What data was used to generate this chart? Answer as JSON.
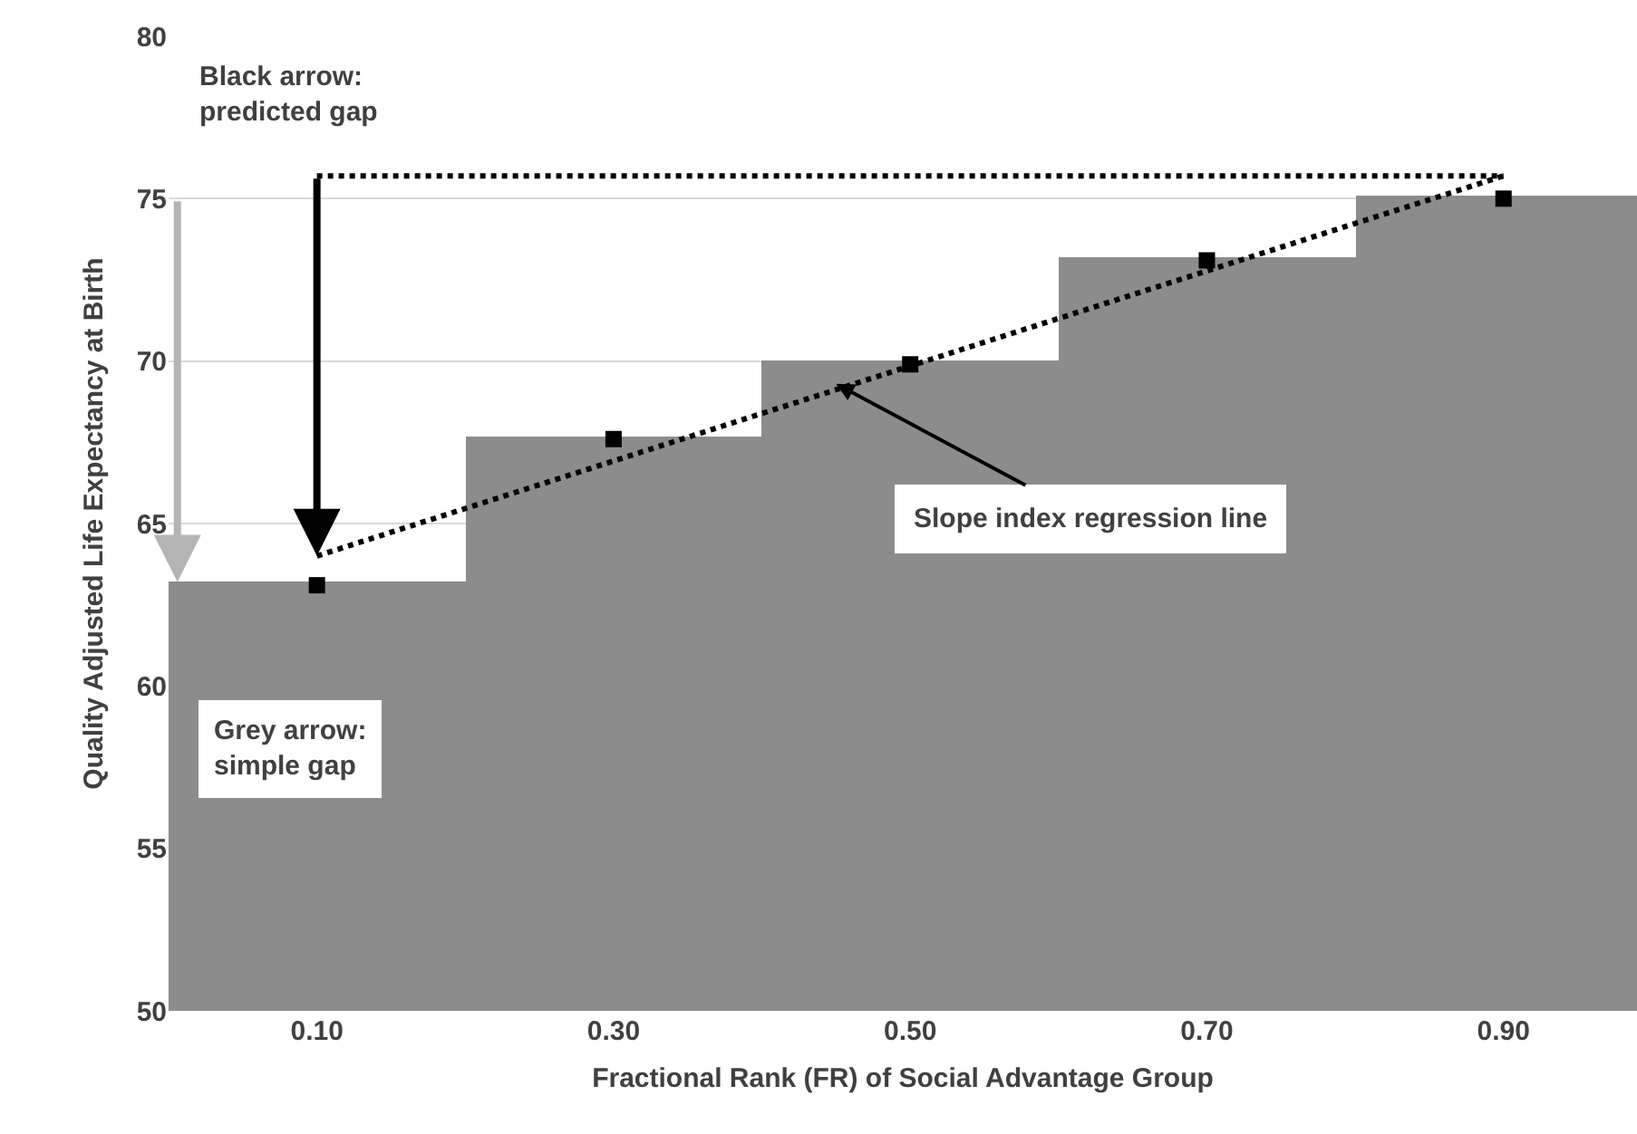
{
  "chart_data": {
    "type": "bar",
    "xlabel": "Fractional Rank (FR) of Social Advantage Group",
    "ylabel": "Quality Adjusted Life Expectancy at Birth",
    "xlim": [
      0,
      0.99
    ],
    "ylim": [
      50,
      80
    ],
    "xticks": [
      {
        "value": 0.1,
        "label": "0.10"
      },
      {
        "value": 0.3,
        "label": "0.30"
      },
      {
        "value": 0.5,
        "label": "0.50"
      },
      {
        "value": 0.7,
        "label": "0.70"
      },
      {
        "value": 0.9,
        "label": "0.90"
      }
    ],
    "yticks": [
      50,
      55,
      60,
      65,
      70,
      75,
      80
    ],
    "grid": "y",
    "series": [
      {
        "color": "#8c8c8c",
        "x": [
          0.1,
          0.3,
          0.5,
          0.7,
          0.9
        ],
        "values": [
          63.2,
          67.7,
          70.0,
          73.2,
          75.1
        ]
      },
      {
        "type": "scatter",
        "marker": "square",
        "color": "#000000",
        "x": [
          0.1,
          0.3,
          0.5,
          0.7,
          0.9
        ],
        "values": [
          63.1,
          67.6,
          69.9,
          73.1,
          75.0
        ]
      },
      {
        "type": "line",
        "line_style": "dotted",
        "color": "#000000",
        "x": [
          0.1,
          0.9
        ],
        "values": [
          64.0,
          75.7
        ]
      },
      {
        "type": "line",
        "line_style": "dotted",
        "color": "#000000",
        "x": [
          0.1,
          0.9
        ],
        "values": [
          75.7,
          75.7
        ]
      }
    ],
    "annotations": [
      "Black arrow:\npredicted gap",
      "Grey arrow:\nsimple gap",
      {
        "text": "Slope index regression line",
        "x": 0.45,
        "y": 69.3
      }
    ]
  }
}
